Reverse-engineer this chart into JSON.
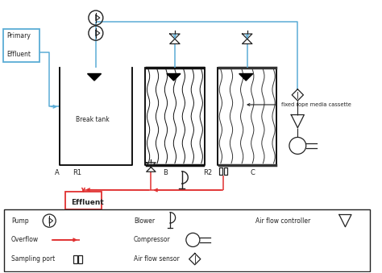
{
  "bg_color": "#ffffff",
  "blue": "#5bacd6",
  "red": "#e03030",
  "black": "#222222",
  "figsize": [
    4.74,
    3.39
  ],
  "dpi": 100,
  "xlim": [
    0,
    10
  ],
  "ylim": [
    0,
    7.1
  ]
}
